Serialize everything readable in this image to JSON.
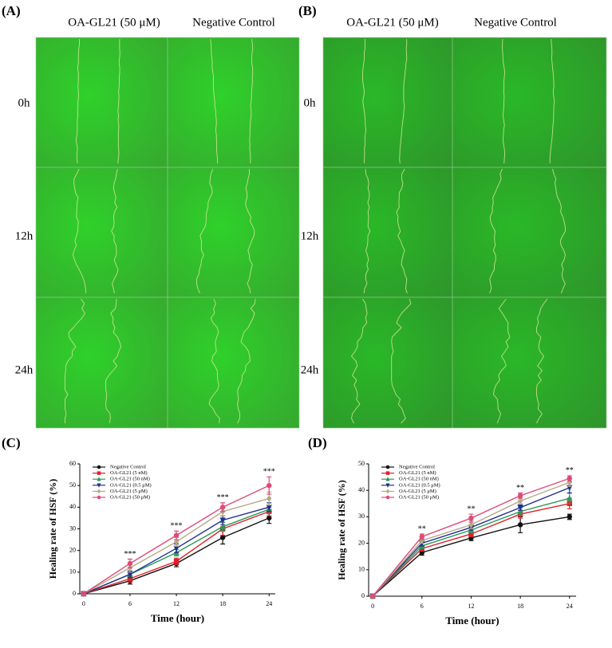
{
  "panels": [
    {
      "label": "(A)",
      "columns": [
        "OA-GL21 (50 μM)",
        "Negative Control"
      ],
      "rows": [
        "0h",
        "12h",
        "24h"
      ]
    },
    {
      "label": "(B)",
      "columns": [
        "OA-GL21 (50 μM)",
        "Negative Control"
      ],
      "rows": [
        "0h",
        "12h",
        "24h"
      ]
    }
  ],
  "chart_data": [
    {
      "type": "line",
      "label": "(C)",
      "xlabel": "Time (hour)",
      "ylabel": "Healing rate of HSF (%)",
      "x": [
        0,
        6,
        12,
        18,
        24
      ],
      "xlim": [
        -0.5,
        24.8
      ],
      "xticks": [
        0,
        6,
        12,
        18,
        24
      ],
      "ylim": [
        0,
        60
      ],
      "yticks": [
        0,
        10,
        20,
        30,
        40,
        50,
        60
      ],
      "series": [
        {
          "name": "Negative Control",
          "color": "#111111",
          "marker": "circle",
          "values": [
            0,
            6,
            14,
            26,
            35
          ],
          "errors": [
            0,
            1.5,
            1.5,
            3,
            2.5
          ]
        },
        {
          "name": "OA-GL21 (5 nM)",
          "color": "#e0202a",
          "marker": "square",
          "values": [
            0,
            7,
            15,
            30,
            38
          ],
          "errors": [
            0,
            1.5,
            1.5,
            3,
            2
          ]
        },
        {
          "name": "OA-GL21 (50 nM)",
          "color": "#2a9a5a",
          "marker": "triangle-up",
          "values": [
            0,
            9,
            19,
            31,
            39
          ],
          "errors": [
            0,
            1.5,
            1.5,
            2,
            2
          ]
        },
        {
          "name": "OA-GL21 (0.5 μM)",
          "color": "#1f2f8f",
          "marker": "triangle-down",
          "values": [
            0,
            9,
            21,
            34,
            40
          ],
          "errors": [
            0,
            1.5,
            2,
            2,
            2
          ]
        },
        {
          "name": "OA-GL21 (5 μM)",
          "color": "#b4aa88",
          "marker": "diamond",
          "values": [
            0,
            12,
            24,
            38,
            44
          ],
          "errors": [
            0,
            2,
            2,
            2,
            3
          ]
        },
        {
          "name": "OA-GL21 (50 μM)",
          "color": "#e04a78",
          "marker": "circle",
          "values": [
            0,
            14,
            27,
            40,
            50
          ],
          "errors": [
            0,
            2,
            2,
            2,
            4
          ]
        }
      ],
      "annotations": [
        {
          "x": 6,
          "text": "***"
        },
        {
          "x": 12,
          "text": "***"
        },
        {
          "x": 18,
          "text": "***"
        },
        {
          "x": 24,
          "text": "***"
        }
      ]
    },
    {
      "type": "line",
      "label": "(D)",
      "xlabel": "Time (hour)",
      "ylabel": "Healing rate of HSF (%)",
      "x": [
        0,
        6,
        12,
        18,
        24
      ],
      "xlim": [
        -0.5,
        24.8
      ],
      "xticks": [
        0,
        6,
        12,
        18,
        24
      ],
      "ylim": [
        0,
        50
      ],
      "yticks": [
        0,
        10,
        20,
        30,
        40,
        50
      ],
      "series": [
        {
          "name": "Negative Control",
          "color": "#111111",
          "marker": "circle",
          "values": [
            0,
            16.5,
            22,
            27,
            30
          ],
          "errors": [
            0,
            1,
            1,
            3,
            1
          ]
        },
        {
          "name": "OA-GL21 (5 nM)",
          "color": "#e0202a",
          "marker": "square",
          "values": [
            0,
            18,
            23.5,
            31,
            35
          ],
          "errors": [
            0,
            1,
            1,
            1.5,
            2
          ]
        },
        {
          "name": "OA-GL21 (50 nM)",
          "color": "#2a9a5a",
          "marker": "triangle-up",
          "values": [
            0,
            19,
            25,
            32,
            37
          ],
          "errors": [
            0,
            1,
            1,
            1.5,
            2
          ]
        },
        {
          "name": "OA-GL21 (0.5 μM)",
          "color": "#1f2f8f",
          "marker": "triangle-down",
          "values": [
            0,
            20,
            26,
            33.5,
            41
          ],
          "errors": [
            0,
            1,
            1,
            1,
            2
          ]
        },
        {
          "name": "OA-GL21 (5 μM)",
          "color": "#b4aa88",
          "marker": "diamond",
          "values": [
            0,
            21,
            27,
            36,
            43
          ],
          "errors": [
            0,
            1,
            1.5,
            1,
            1.5
          ]
        },
        {
          "name": "OA-GL21 (50 μM)",
          "color": "#e04a78",
          "marker": "circle",
          "values": [
            0,
            22.5,
            29.5,
            38,
            44.5
          ],
          "errors": [
            0,
            1,
            1.5,
            1,
            1
          ]
        }
      ],
      "annotations": [
        {
          "x": 6,
          "text": "**"
        },
        {
          "x": 12,
          "text": "**"
        },
        {
          "x": 18,
          "text": "**"
        },
        {
          "x": 24,
          "text": "**"
        }
      ]
    }
  ]
}
